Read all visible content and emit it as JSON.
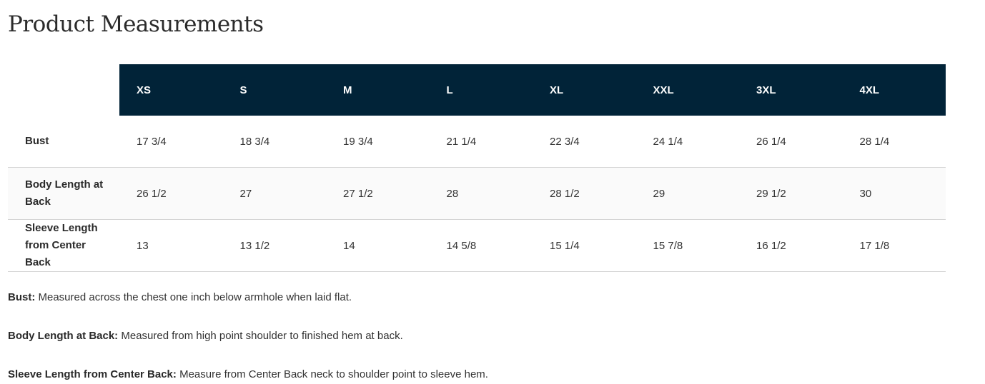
{
  "title": "Product Measurements",
  "header_color": "#012338",
  "sizes": [
    "XS",
    "S",
    "M",
    "L",
    "XL",
    "XXL",
    "3XL",
    "4XL"
  ],
  "rows": [
    {
      "label": "Bust",
      "values": [
        "17 3/4",
        "18 3/4",
        "19 3/4",
        "21 1/4",
        "22 3/4",
        "24 1/4",
        "26 1/4",
        "28 1/4"
      ]
    },
    {
      "label": "Body Length at Back",
      "values": [
        "26 1/2",
        "27",
        "27 1/2",
        "28",
        "28 1/2",
        "29",
        "29 1/2",
        "30"
      ]
    },
    {
      "label": "Sleeve Length from Center Back",
      "values": [
        "13",
        "13 1/2",
        "14",
        "14 5/8",
        "15 1/4",
        "15 7/8",
        "16 1/2",
        "17 1/8"
      ]
    }
  ],
  "notes": [
    {
      "term": "Bust:",
      "text": " Measured across the chest one inch below armhole when laid flat."
    },
    {
      "term": "Body Length at Back:",
      "text": " Measured from high point shoulder to finished hem at back."
    },
    {
      "term": "Sleeve Length from Center Back:",
      "text": " Measure from Center Back neck to shoulder point to sleeve hem."
    }
  ]
}
